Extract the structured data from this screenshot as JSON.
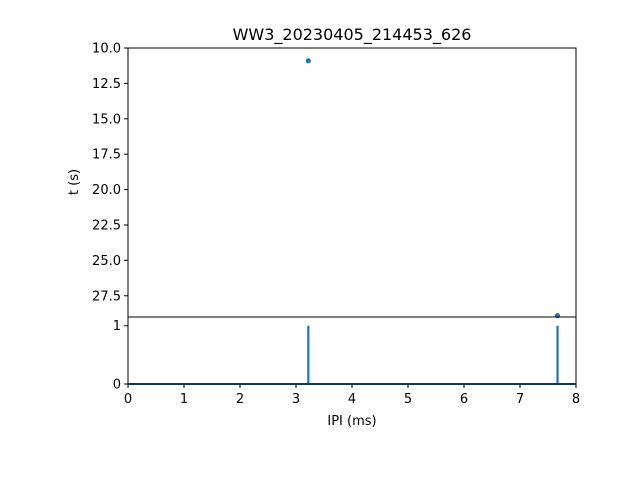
{
  "chart_data": [
    {
      "type": "scatter",
      "title": "WW3_20230405_214453_626",
      "xlabel": "",
      "ylabel": "t (s)",
      "xlim": [
        0,
        8
      ],
      "ylim": [
        29.0,
        10.0
      ],
      "y_inverted": true,
      "yticks": [
        10.0,
        12.5,
        15.0,
        17.5,
        20.0,
        22.5,
        25.0,
        27.5
      ],
      "ytick_labels": [
        "10.0",
        "12.5",
        "15.0",
        "17.5",
        "20.0",
        "22.5",
        "25.0",
        "27.5"
      ],
      "grid": false,
      "color": "#1f77b4",
      "points": [
        {
          "x": 3.22,
          "y": 10.9
        },
        {
          "x": 7.67,
          "y": 28.9
        }
      ]
    },
    {
      "type": "line",
      "title": "",
      "xlabel": "IPI (ms)",
      "ylabel": "",
      "xlim": [
        0,
        8
      ],
      "ylim": [
        0,
        1.15
      ],
      "xticks": [
        0,
        1,
        2,
        3,
        4,
        5,
        6,
        7,
        8
      ],
      "xtick_labels": [
        "0",
        "1",
        "2",
        "3",
        "4",
        "5",
        "6",
        "7",
        "8"
      ],
      "yticks": [
        0,
        1
      ],
      "ytick_labels": [
        "0",
        "1"
      ],
      "grid": false,
      "color": "#1f77b4",
      "baseline": 0,
      "spikes": [
        {
          "x": 3.22,
          "y": 1
        },
        {
          "x": 7.67,
          "y": 1
        }
      ]
    }
  ]
}
